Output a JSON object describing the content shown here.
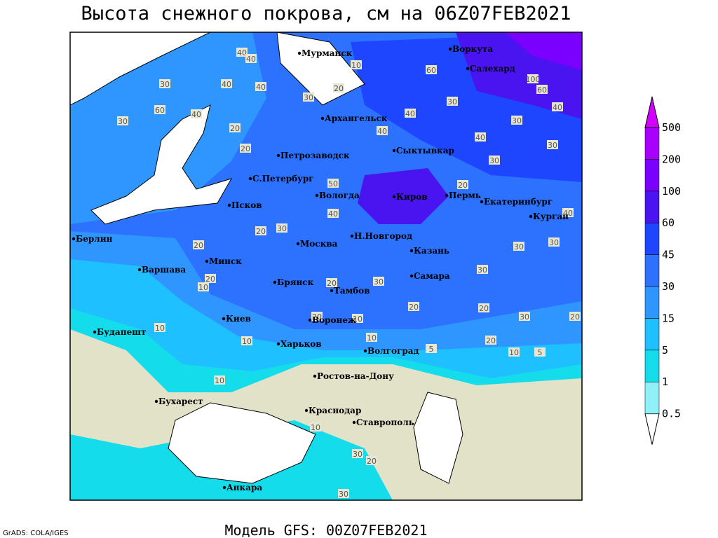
{
  "title": "Высота снежного покрова, см на 06Z07FEB2021",
  "footer_left": "GrADS: COLA/IGES",
  "footer_center": "Модель GFS: 00Z07FEB2021",
  "legend": {
    "levels": [
      0.5,
      1,
      5,
      15,
      30,
      45,
      60,
      100,
      200,
      500
    ],
    "colors": [
      "#ffffff",
      "#8ff0f8",
      "#14dcea",
      "#1ec0ff",
      "#2f96ff",
      "#2c72ff",
      "#1e46ff",
      "#4a14f0",
      "#7a00ff",
      "#a800ff",
      "#d400ff"
    ]
  },
  "cities": [
    "Мурманск",
    "Воркута",
    "Салехард",
    "Архангельск",
    "Петрозаводск",
    "Сыктывкар",
    "С.Петербург",
    "Вологда",
    "Киров",
    "Пермь",
    "Екатеринбург",
    "Псков",
    "Курган",
    "Берлин",
    "Н.Новгород",
    "Москва",
    "Казань",
    "Минск",
    "Варшава",
    "Брянск",
    "Самара",
    "Тамбов",
    "Киев",
    "Воронеж",
    "Будапешт",
    "Харьков",
    "Волгоград",
    "Ростов-на-Дону",
    "Бухарест",
    "Краснодар",
    "Ставрополь",
    "Анкара"
  ],
  "contour_labels": [
    40,
    40,
    10,
    20,
    60,
    100,
    60,
    30,
    40,
    40,
    30,
    30,
    40,
    60,
    30,
    20,
    20,
    40,
    40,
    40,
    30,
    40,
    30,
    30,
    20,
    40,
    30,
    30,
    20,
    20,
    30,
    50,
    40,
    20,
    10,
    20,
    30,
    20,
    30,
    20,
    30,
    20,
    20,
    10,
    10,
    10,
    10,
    5,
    5,
    10,
    10,
    20,
    30,
    20,
    30,
    10
  ]
}
